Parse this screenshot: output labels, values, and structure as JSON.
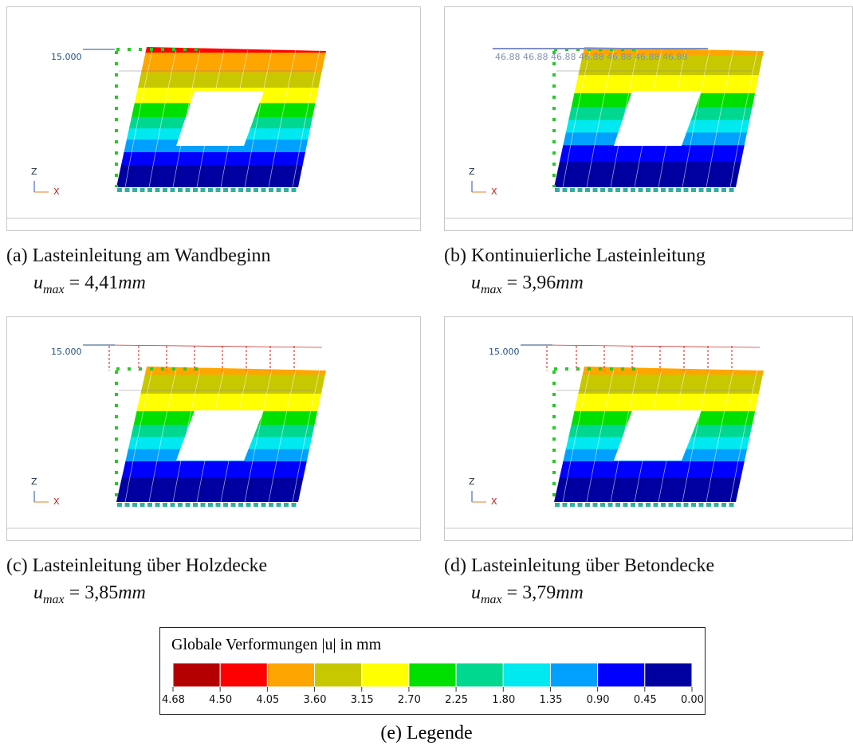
{
  "panels": [
    {
      "load_labels": [
        "15.000"
      ],
      "axis_z": "Z",
      "axis_x": "X",
      "caption": "(a) Lasteinleitung am Wandbeginn",
      "formula": {
        "symbol": "u",
        "sub": "max",
        "value": "= 4,41",
        "unit": "mm"
      }
    },
    {
      "load_labels": [
        "46.88",
        "46.88",
        "46.88",
        "46.88",
        "46.88",
        "46.88",
        "46.88"
      ],
      "axis_z": "Z",
      "axis_x": "X",
      "caption": "(b) Kontinuierliche Lasteinleitung",
      "formula": {
        "symbol": "u",
        "sub": "max",
        "value": "= 3,96",
        "unit": "mm"
      }
    },
    {
      "load_labels": [
        "15.000"
      ],
      "axis_z": "Z",
      "axis_x": "X",
      "caption": "(c) Lasteinleitung über Holzdecke",
      "formula": {
        "symbol": "u",
        "sub": "max",
        "value": "= 3,85",
        "unit": "mm"
      }
    },
    {
      "load_labels": [
        "15.000"
      ],
      "axis_z": "Z",
      "axis_x": "X",
      "caption": "(d) Lasteinleitung über Betondecke",
      "formula": {
        "symbol": "u",
        "sub": "max",
        "value": "= 3,79",
        "unit": "mm"
      }
    }
  ],
  "legend": {
    "title": "Globale Verformungen |u| in mm",
    "colors": [
      "#b40000",
      "#ff0000",
      "#ffa500",
      "#c8c800",
      "#ffff00",
      "#00e000",
      "#00d890",
      "#00e8f0",
      "#00a0ff",
      "#0000ff",
      "#0000a0"
    ],
    "ticks": [
      "4.68",
      "4.50",
      "4.05",
      "3.60",
      "3.15",
      "2.70",
      "2.25",
      "1.80",
      "1.35",
      "0.90",
      "0.45",
      "0.00"
    ],
    "caption": "(e) Legende"
  }
}
